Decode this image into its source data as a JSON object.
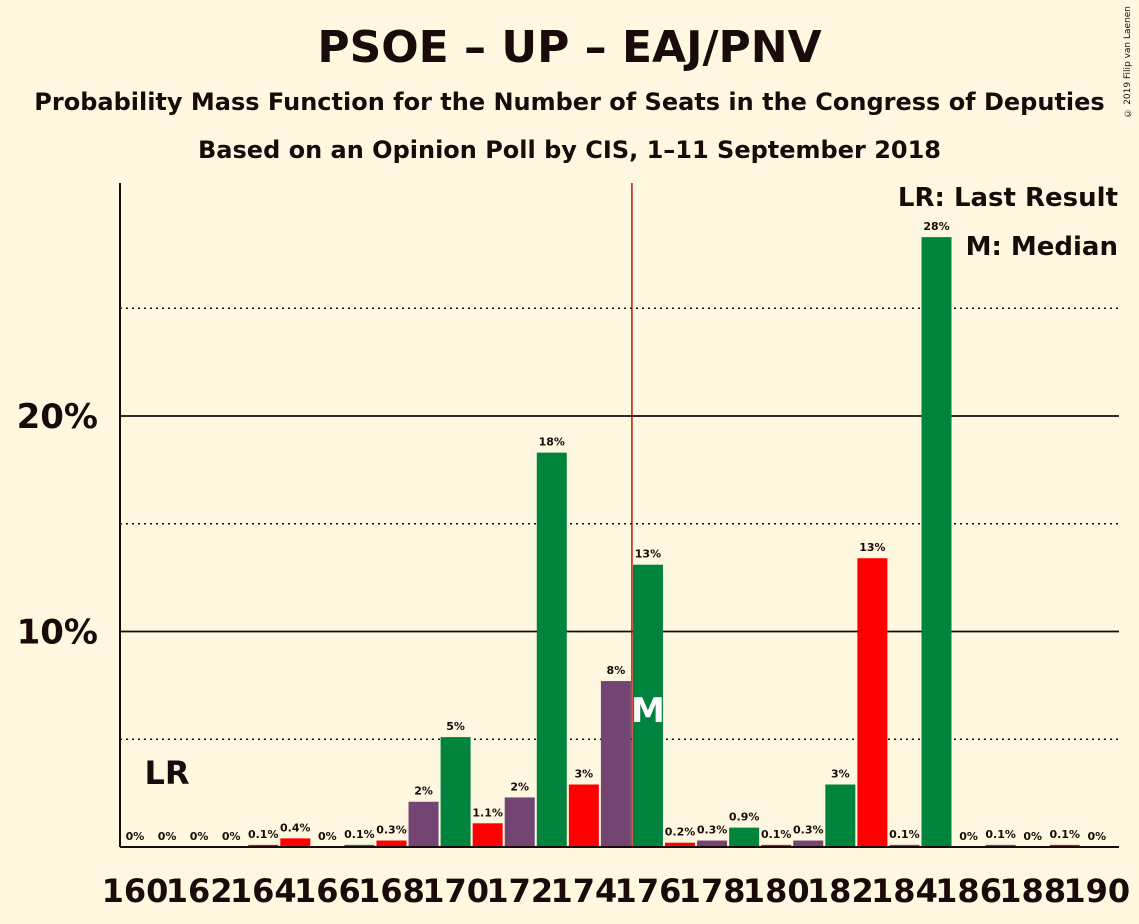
{
  "chart_data": {
    "type": "bar",
    "title": "PSOE – UP – EAJ/PNV",
    "subtitle": "Probability Mass Function for the Number of Seats in the Congress of Deputies",
    "subtitle2": "Based on an Opinion Poll by CIS, 1–11 September 2018",
    "copyright": "© 2019 Filip van Laenen",
    "x": [
      160,
      161,
      162,
      163,
      164,
      165,
      166,
      167,
      168,
      169,
      170,
      171,
      172,
      173,
      174,
      175,
      176,
      177,
      178,
      179,
      180,
      181,
      182,
      183,
      184,
      185,
      186,
      187,
      188,
      189,
      190
    ],
    "values": [
      0,
      0,
      0,
      0,
      0.1,
      0.4,
      0,
      0.1,
      0.3,
      2.1,
      5.1,
      1.1,
      2.3,
      18.3,
      2.9,
      7.7,
      13.1,
      0.2,
      0.3,
      0.9,
      0.1,
      0.3,
      2.9,
      13.4,
      0.1,
      28.3,
      0,
      0.1,
      0,
      0.1,
      0
    ],
    "value_labels": [
      "0%",
      "0%",
      "0%",
      "0%",
      "0.1%",
      "0.4%",
      "0%",
      "0.1%",
      "0.3%",
      "2%",
      "5%",
      "1.1%",
      "2%",
      "18%",
      "3%",
      "8%",
      "13%",
      "0.2%",
      "0.3%",
      "0.9%",
      "0.1%",
      "0.3%",
      "3%",
      "13%",
      "0.1%",
      "28%",
      "0%",
      "0.1%",
      "0%",
      "0.1%",
      "0%"
    ],
    "bar_colors": [
      "#00843D",
      "#FF0000",
      "#734573",
      "#00843D",
      "#FF0000",
      "#FF0000",
      "#734573",
      "#00843D",
      "#FF0000",
      "#734573",
      "#00843D",
      "#FF0000",
      "#734573",
      "#00843D",
      "#FF0000",
      "#734573",
      "#00843D",
      "#FF0000",
      "#734573",
      "#00843D",
      "#FF0000",
      "#734573",
      "#00843D",
      "#FF0000",
      "#734573",
      "#00843D",
      "#FF0000",
      "#734573",
      "#00843D",
      "#FF0000",
      "#734573"
    ],
    "x_tick_labels": [
      "160",
      "162",
      "164",
      "166",
      "168",
      "170",
      "172",
      "174",
      "176",
      "178",
      "180",
      "182",
      "184",
      "186",
      "188",
      "190"
    ],
    "y_tick_labels": [
      {
        "value": 10,
        "label": "10%"
      },
      {
        "value": 20,
        "label": "20%"
      }
    ],
    "ylim": [
      0,
      30
    ],
    "dotted_gridlines": [
      5,
      15,
      25
    ],
    "last_result": {
      "seat": 161,
      "label": "LR"
    },
    "median": {
      "seat": 176,
      "label": "M"
    },
    "majority_line": 175.5,
    "legend": [
      "LR: Last Result",
      "M: Median"
    ],
    "line_color": "#C00000"
  }
}
